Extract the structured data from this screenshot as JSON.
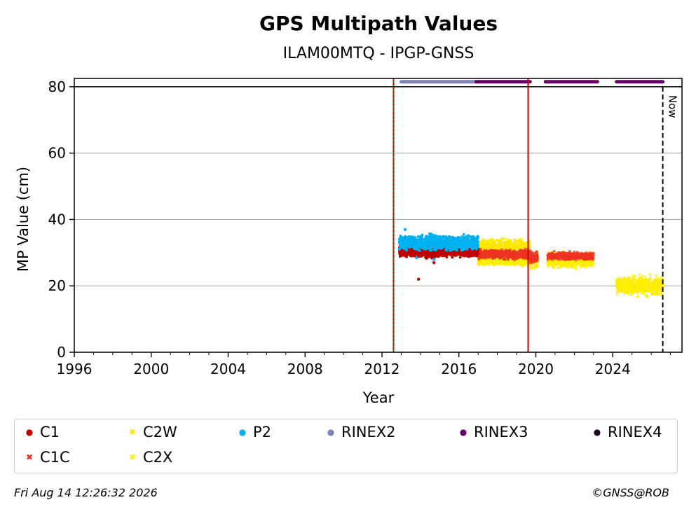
{
  "chart_data": {
    "type": "scatter",
    "title": "GPS Multipath Values",
    "subtitle": "ILAM00MTQ - IPGP-GNSS",
    "xlabel": "Year",
    "ylabel": "MP Value (cm)",
    "xlim": [
      1996,
      2027.6
    ],
    "ylim": [
      0,
      82.5
    ],
    "xticks": [
      1996,
      2000,
      2004,
      2008,
      2012,
      2016,
      2020,
      2024
    ],
    "yticks": [
      0,
      20,
      40,
      60,
      80
    ],
    "grid": "horizontal",
    "colors": {
      "C1": "#c00000",
      "C1C": "#ee3322",
      "C2W": "#ffe600",
      "C2X": "#ffee00",
      "P2": "#00b0f0",
      "RINEX2": "#8080c0",
      "RINEX3": "#660066",
      "RINEX4": "#200020"
    },
    "series": [
      {
        "name": "C1",
        "segments": [
          {
            "x0": 2012.9,
            "x1": 2017.0,
            "mean": 30.5,
            "spread": 1.6
          }
        ],
        "outliers": [
          [
            2013.9,
            22.0
          ],
          [
            2014.7,
            27.0
          ]
        ]
      },
      {
        "name": "C1C",
        "segments": [
          {
            "x0": 2017.0,
            "x1": 2019.7,
            "mean": 29.5,
            "spread": 1.2
          },
          {
            "x0": 2019.7,
            "x1": 2020.1,
            "mean": 28.5,
            "spread": 1.5
          },
          {
            "x0": 2020.6,
            "x1": 2023.0,
            "mean": 29.0,
            "spread": 1.0
          }
        ]
      },
      {
        "name": "C2W",
        "segments": [
          {
            "x0": 2017.0,
            "x1": 2019.7,
            "mean": 31.5,
            "spread": 2.2
          }
        ]
      },
      {
        "name": "C2X",
        "segments": [
          {
            "x0": 2017.0,
            "x1": 2019.7,
            "mean": 27.5,
            "spread": 1.2
          },
          {
            "x0": 2019.7,
            "x1": 2020.1,
            "mean": 27.5,
            "spread": 2.0
          },
          {
            "x0": 2020.6,
            "x1": 2023.0,
            "mean": 27.8,
            "spread": 2.0
          },
          {
            "x0": 2024.2,
            "x1": 2026.6,
            "mean": 20.0,
            "spread": 2.6
          }
        ]
      },
      {
        "name": "P2",
        "segments": [
          {
            "x0": 2012.9,
            "x1": 2017.0,
            "mean": 33.0,
            "spread": 2.0
          }
        ],
        "outliers": [
          [
            2013.2,
            37.0
          ],
          [
            2013.8,
            28.5
          ],
          [
            2014.7,
            28.0
          ]
        ]
      }
    ],
    "rinex_availability": [
      {
        "name": "RINEX2",
        "ranges": [
          [
            2013.0,
            2016.9
          ]
        ]
      },
      {
        "name": "RINEX3",
        "ranges": [
          [
            2016.9,
            2019.7
          ],
          [
            2020.5,
            2023.2
          ],
          [
            2024.2,
            2026.6
          ]
        ]
      }
    ],
    "vlines": [
      {
        "x": 2012.6,
        "style": "green-red-dashed"
      },
      {
        "x": 2019.6,
        "style": "red-solid"
      },
      {
        "x": 2026.6,
        "style": "black-dashed",
        "label": "Now"
      }
    ],
    "hline": 80
  },
  "legend": {
    "items": [
      {
        "label": "C1",
        "marker": "●",
        "color": "#c00000"
      },
      {
        "label": "C2W",
        "marker": "✖",
        "color": "#ffe600"
      },
      {
        "label": "P2",
        "marker": "●",
        "color": "#00b0f0"
      },
      {
        "label": "RINEX2",
        "marker": "●",
        "color": "#8080c0"
      },
      {
        "label": "RINEX3",
        "marker": "●",
        "color": "#660066"
      },
      {
        "label": "RINEX4",
        "marker": "●",
        "color": "#200020"
      },
      {
        "label": "C1C",
        "marker": "✖",
        "color": "#ee3322"
      },
      {
        "label": "C2X",
        "marker": "✖",
        "color": "#ffee00"
      }
    ]
  },
  "footer": {
    "timestamp": "Fri Aug 14 12:26:32 2026",
    "copyright": "©GNSS@ROB"
  }
}
